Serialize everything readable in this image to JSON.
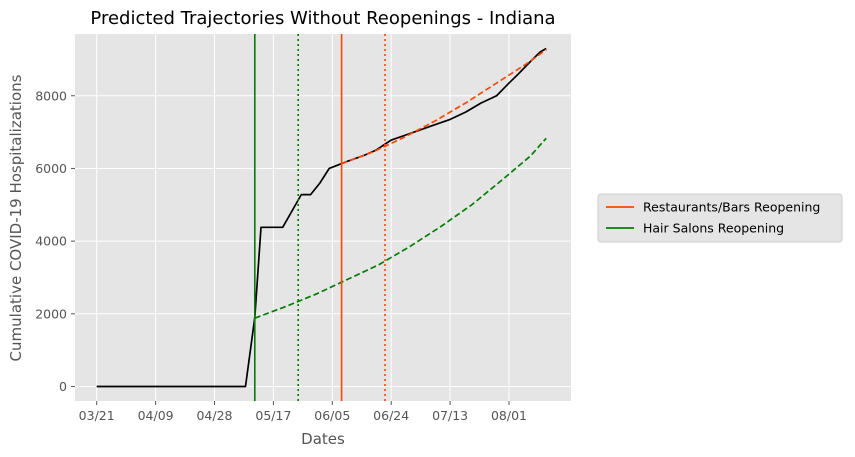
{
  "chart_data": {
    "type": "line",
    "title": "Predicted Trajectories Without Reopenings - Indiana",
    "xlabel": "Dates",
    "ylabel": "Cumulative COVID-19 Hospitalizations",
    "x_tick_labels": [
      "03/21",
      "04/09",
      "04/28",
      "05/17",
      "06/05",
      "06/24",
      "07/13",
      "08/01"
    ],
    "x_ticks": [
      "2020-03-21",
      "2020-04-09",
      "2020-04-28",
      "2020-05-17",
      "2020-06-05",
      "2020-06-24",
      "2020-07-13",
      "2020-08-01"
    ],
    "xlim": [
      "2020-03-14",
      "2020-08-21"
    ],
    "ylim": [
      -400,
      9700
    ],
    "y_ticks": [
      0,
      2000,
      4000,
      6000,
      8000
    ],
    "grid": true,
    "legend_position": "outside-right",
    "series": [
      {
        "role": "actual",
        "color": "#000000",
        "style": "solid",
        "points": [
          [
            "2020-03-21",
            0
          ],
          [
            "2020-04-09",
            0
          ],
          [
            "2020-04-28",
            0
          ],
          [
            "2020-05-08",
            0
          ],
          [
            "2020-05-11",
            1900
          ],
          [
            "2020-05-13",
            4380
          ],
          [
            "2020-05-20",
            4380
          ],
          [
            "2020-05-26",
            5280
          ],
          [
            "2020-05-29",
            5280
          ],
          [
            "2020-06-01",
            5600
          ],
          [
            "2020-06-04",
            6000
          ],
          [
            "2020-06-07",
            6100
          ],
          [
            "2020-06-10",
            6200
          ],
          [
            "2020-06-15",
            6350
          ],
          [
            "2020-06-19",
            6500
          ],
          [
            "2020-06-24",
            6780
          ],
          [
            "2020-06-28",
            6900
          ],
          [
            "2020-07-03",
            7050
          ],
          [
            "2020-07-08",
            7200
          ],
          [
            "2020-07-13",
            7350
          ],
          [
            "2020-07-18",
            7550
          ],
          [
            "2020-07-23",
            7800
          ],
          [
            "2020-07-28",
            8000
          ],
          [
            "2020-08-01",
            8350
          ],
          [
            "2020-08-04",
            8600
          ],
          [
            "2020-08-08",
            8950
          ],
          [
            "2020-08-11",
            9200
          ],
          [
            "2020-08-13",
            9300
          ]
        ]
      },
      {
        "role": "predicted-no-hair-salons",
        "color": "#008000",
        "style": "dashed",
        "points": [
          [
            "2020-05-11",
            1880
          ],
          [
            "2020-05-21",
            2200
          ],
          [
            "2020-05-31",
            2550
          ],
          [
            "2020-06-10",
            2950
          ],
          [
            "2020-06-20",
            3350
          ],
          [
            "2020-06-30",
            3850
          ],
          [
            "2020-07-10",
            4400
          ],
          [
            "2020-07-20",
            5000
          ],
          [
            "2020-07-30",
            5700
          ],
          [
            "2020-08-08",
            6350
          ],
          [
            "2020-08-13",
            6830
          ]
        ]
      },
      {
        "role": "predicted-no-restaurants",
        "color": "#ff4500",
        "style": "dashed",
        "points": [
          [
            "2020-06-08",
            6130
          ],
          [
            "2020-06-18",
            6450
          ],
          [
            "2020-06-28",
            6850
          ],
          [
            "2020-07-08",
            7300
          ],
          [
            "2020-07-18",
            7800
          ],
          [
            "2020-07-28",
            8350
          ],
          [
            "2020-08-07",
            8900
          ],
          [
            "2020-08-13",
            9270
          ]
        ]
      }
    ],
    "vertical_lines": [
      {
        "date": "2020-05-11",
        "color": "#008000",
        "style": "solid",
        "legend": "Hair Salons Reopening"
      },
      {
        "date": "2020-05-25",
        "color": "#008000",
        "style": "dotted"
      },
      {
        "date": "2020-06-08",
        "color": "#ff4500",
        "style": "solid",
        "legend": "Restaurants/Bars Reopening"
      },
      {
        "date": "2020-06-22",
        "color": "#ff4500",
        "style": "dotted"
      }
    ],
    "legend": [
      {
        "label": "Restaurants/Bars Reopening",
        "color": "#ff4500"
      },
      {
        "label": "Hair Salons Reopening",
        "color": "#008000"
      }
    ]
  }
}
